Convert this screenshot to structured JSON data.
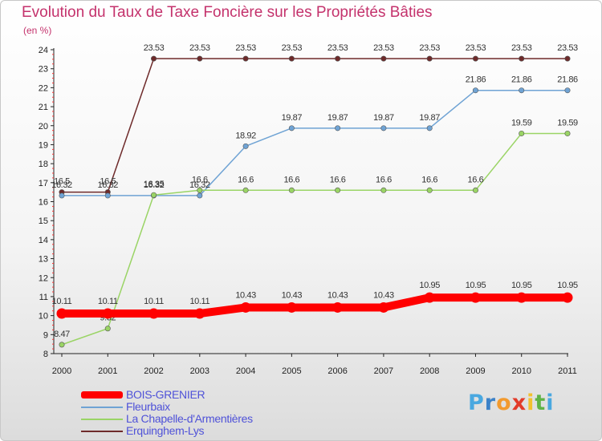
{
  "header": {
    "title": "Evolution du Taux de Taxe Foncière sur les Propriétés Bâties",
    "unit": "(en %)"
  },
  "chart_data": {
    "type": "line",
    "title": "Evolution du Taux de Taxe Foncière sur les Propriétés Bâties",
    "ylabel": "(en %)",
    "xlabel": "",
    "ylim": [
      8,
      24
    ],
    "yticks": [
      8,
      9,
      10,
      11,
      12,
      13,
      14,
      15,
      16,
      17,
      18,
      19,
      20,
      21,
      22,
      23,
      24
    ],
    "categories": [
      "2000",
      "2001",
      "2002",
      "2003",
      "2004",
      "2005",
      "2006",
      "2007",
      "2008",
      "2009",
      "2010",
      "2011"
    ],
    "grid": false,
    "legend_position": "bottom-left",
    "series": [
      {
        "name": "Erquinghem-Lys",
        "color": "#6e2a2a",
        "values": [
          16.5,
          16.5,
          23.53,
          23.53,
          23.53,
          23.53,
          23.53,
          23.53,
          23.53,
          23.53,
          23.53,
          23.53
        ],
        "labels": [
          "16.5",
          "16.5",
          "23.53",
          "23.53",
          "23.53",
          "23.53",
          "23.53",
          "23.53",
          "23.53",
          "23.53",
          "23.53",
          "23.53"
        ]
      },
      {
        "name": "Fleurbaix",
        "color": "#6fa3d4",
        "values": [
          16.32,
          16.32,
          16.32,
          16.32,
          18.92,
          19.87,
          19.87,
          19.87,
          19.87,
          21.86,
          21.86,
          21.86
        ],
        "labels": [
          "16.32",
          "16.32",
          "16.32",
          "16.32",
          "18.92",
          "19.87",
          "19.87",
          "19.87",
          "19.87",
          "21.86",
          "21.86",
          "21.86"
        ]
      },
      {
        "name": "La Chapelle-d'Armentières",
        "color": "#9ad465",
        "values": [
          8.47,
          9.32,
          16.35,
          16.6,
          16.6,
          16.6,
          16.6,
          16.6,
          16.6,
          16.6,
          19.59,
          19.59
        ],
        "labels": [
          "8.47",
          "9.32",
          "16.35",
          "16.6",
          "16.6",
          "16.6",
          "16.6",
          "16.6",
          "16.6",
          "16.6",
          "19.59",
          "19.59"
        ]
      },
      {
        "name": "BOIS-GRENIER",
        "color": "#ff0000",
        "values": [
          10.11,
          10.11,
          10.11,
          10.11,
          10.43,
          10.43,
          10.43,
          10.43,
          10.95,
          10.95,
          10.95,
          10.95
        ],
        "labels": [
          "10.11",
          "10.11",
          "10.11",
          "10.11",
          "10.43",
          "10.43",
          "10.43",
          "10.43",
          "10.95",
          "10.95",
          "10.95",
          "10.95"
        ]
      }
    ]
  },
  "legend": [
    {
      "label": "BOIS-GRENIER",
      "color": "#ff0000"
    },
    {
      "label": "Fleurbaix",
      "color": "#6fa3d4"
    },
    {
      "label": "La Chapelle-d'Armentières",
      "color": "#9ad465"
    },
    {
      "label": "Erquinghem-Lys",
      "color": "#6e2a2a"
    }
  ],
  "logo": {
    "letters": [
      "P",
      "r",
      "o",
      "x",
      "i",
      "t",
      "i"
    ],
    "colors": [
      "#4aa8e0",
      "#3c82c8",
      "#f29a2e",
      "#e23b2a",
      "#f2c12e",
      "#5fb346",
      "#4aa8e0"
    ]
  }
}
